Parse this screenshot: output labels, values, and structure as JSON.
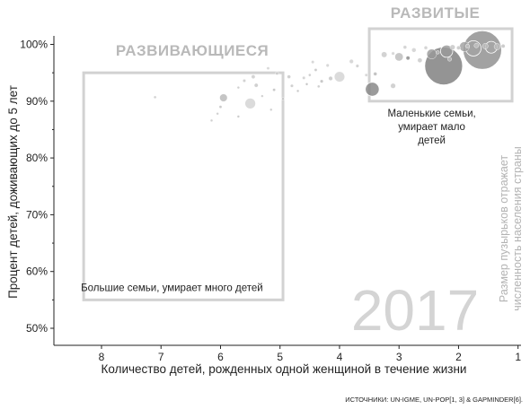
{
  "chart_data": {
    "type": "scatter",
    "xlabel": "Количество детей, рожденных одной женщиной в течение жизни",
    "ylabel": "Процент детей, доживающих до 5 лет",
    "xlim": [
      8.8,
      0.95
    ],
    "ylim": [
      47,
      101.5
    ],
    "x_ticks": [
      "8",
      "7",
      "6",
      "5",
      "4",
      "3",
      "2",
      "1"
    ],
    "x_tick_values": [
      8,
      7,
      6,
      5,
      4,
      3,
      2,
      1
    ],
    "y_ticks": [
      "50%",
      "60%",
      "70%",
      "80%",
      "90%",
      "100%"
    ],
    "y_tick_values": [
      50,
      60,
      70,
      80,
      90,
      100
    ],
    "grid": false,
    "year": "2017",
    "size_note_line1": "Размер пузырьков отражает",
    "size_note_line2": "численность населения страны",
    "source": "ИСТОЧНИКИ: UN-IGME, UN-POP[1, 3] & GAPMINDER[6].",
    "regions": [
      {
        "label": "РАЗВИВАЮЩИЕСЯ",
        "x_range": [
          8.3,
          4.95
        ],
        "y_range": [
          55,
          95
        ],
        "annotation": [
          "Большие семьи, умирает много детей"
        ]
      },
      {
        "label": "РАЗВИТЫЕ",
        "x_range": [
          3.5,
          1.1
        ],
        "y_range": [
          90,
          103
        ],
        "annotation": [
          "Маленькие семьи,",
          "умирает мало",
          "детей"
        ]
      }
    ],
    "points": [
      {
        "x": 1.6,
        "y": 99.0,
        "size": 1390,
        "color": "#8e8e8e"
      },
      {
        "x": 2.25,
        "y": 96.2,
        "size": 1340,
        "color": "#7d7d7d"
      },
      {
        "x": 1.75,
        "y": 99.3,
        "size": 220,
        "color": "#a3a3a3"
      },
      {
        "x": 1.45,
        "y": 99.5,
        "size": 130,
        "color": "#a6a6a6"
      },
      {
        "x": 1.9,
        "y": 99.6,
        "size": 90,
        "color": "#a0a0a0"
      },
      {
        "x": 2.2,
        "y": 98.8,
        "size": 140,
        "color": "#9a9a9a"
      },
      {
        "x": 2.45,
        "y": 98.3,
        "size": 90,
        "color": "#999999"
      },
      {
        "x": 1.35,
        "y": 99.6,
        "size": 36,
        "color": "#bcbcbc"
      },
      {
        "x": 1.55,
        "y": 99.7,
        "size": 30,
        "color": "#bdbdbd"
      },
      {
        "x": 1.25,
        "y": 99.7,
        "size": 14,
        "color": "#c2c2c2"
      },
      {
        "x": 1.7,
        "y": 99.8,
        "size": 20,
        "color": "#c2c2c2"
      },
      {
        "x": 1.85,
        "y": 99.7,
        "size": 16,
        "color": "#c2c2c2"
      },
      {
        "x": 2.0,
        "y": 99.4,
        "size": 14,
        "color": "#c5c5c5"
      },
      {
        "x": 2.1,
        "y": 99.5,
        "size": 24,
        "color": "#c6c6c6"
      },
      {
        "x": 2.55,
        "y": 99.4,
        "size": 12,
        "color": "#cccccc"
      },
      {
        "x": 2.75,
        "y": 99.0,
        "size": 18,
        "color": "#cfcfcf"
      },
      {
        "x": 2.9,
        "y": 99.5,
        "size": 12,
        "color": "#cccccc"
      },
      {
        "x": 3.0,
        "y": 97.8,
        "size": 64,
        "color": "#bcbcbc"
      },
      {
        "x": 2.65,
        "y": 97.2,
        "size": 20,
        "color": "#c8c8c8"
      },
      {
        "x": 2.85,
        "y": 97.6,
        "size": 14,
        "color": "#888888"
      },
      {
        "x": 3.1,
        "y": 98.4,
        "size": 10,
        "color": "#d0d0d0"
      },
      {
        "x": 3.25,
        "y": 98.2,
        "size": 30,
        "color": "#c9c9c9"
      },
      {
        "x": 2.35,
        "y": 98.6,
        "size": 12,
        "color": "#bdbdbd"
      },
      {
        "x": 2.15,
        "y": 97.4,
        "size": 16,
        "color": "#b9b9b9"
      },
      {
        "x": 3.45,
        "y": 92.1,
        "size": 180,
        "color": "#858585"
      },
      {
        "x": 3.1,
        "y": 92.7,
        "size": 24,
        "color": "#c8c8c8"
      },
      {
        "x": 3.4,
        "y": 94.8,
        "size": 12,
        "color": "#b6b6b6"
      },
      {
        "x": 3.55,
        "y": 94.6,
        "size": 9,
        "color": "#cfcfcf"
      },
      {
        "x": 3.7,
        "y": 96.2,
        "size": 10,
        "color": "#c8c8c8"
      },
      {
        "x": 3.8,
        "y": 97.0,
        "size": 16,
        "color": "#d0d0d0"
      },
      {
        "x": 4.0,
        "y": 94.3,
        "size": 100,
        "color": "#d3d3d3"
      },
      {
        "x": 4.15,
        "y": 94.0,
        "size": 16,
        "color": "#c4c4c4"
      },
      {
        "x": 4.2,
        "y": 96.3,
        "size": 10,
        "color": "#d0d0d0"
      },
      {
        "x": 4.3,
        "y": 93.5,
        "size": 10,
        "color": "#bcbcbc"
      },
      {
        "x": 4.35,
        "y": 92.6,
        "size": 7,
        "color": "#c4c4c4"
      },
      {
        "x": 4.4,
        "y": 95.5,
        "size": 8,
        "color": "#c0c0c0"
      },
      {
        "x": 4.45,
        "y": 96.9,
        "size": 9,
        "color": "#d0d0d0"
      },
      {
        "x": 4.5,
        "y": 94.6,
        "size": 7,
        "color": "#c4c4c4"
      },
      {
        "x": 4.55,
        "y": 93.0,
        "size": 6,
        "color": "#b8b8b8"
      },
      {
        "x": 4.6,
        "y": 94.1,
        "size": 9,
        "color": "#cccccc"
      },
      {
        "x": 4.7,
        "y": 91.8,
        "size": 6,
        "color": "#bdbdbd"
      },
      {
        "x": 4.8,
        "y": 92.7,
        "size": 9,
        "color": "#c6c6c6"
      },
      {
        "x": 4.85,
        "y": 94.3,
        "size": 12,
        "color": "#c6c6c6"
      },
      {
        "x": 4.95,
        "y": 90.4,
        "size": 7,
        "color": "#c0c0c0"
      },
      {
        "x": 5.05,
        "y": 94.9,
        "size": 10,
        "color": "#c9c9c9"
      },
      {
        "x": 5.1,
        "y": 92.0,
        "size": 8,
        "color": "#bdbdbd"
      },
      {
        "x": 5.15,
        "y": 88.5,
        "size": 5,
        "color": "#c6c6c6"
      },
      {
        "x": 5.2,
        "y": 95.8,
        "size": 8,
        "color": "#d0d0d0"
      },
      {
        "x": 5.5,
        "y": 89.6,
        "size": 110,
        "color": "#d3d3d3"
      },
      {
        "x": 5.4,
        "y": 92.8,
        "size": 14,
        "color": "#c6c6c6"
      },
      {
        "x": 5.45,
        "y": 94.3,
        "size": 14,
        "color": "#cbcbcb"
      },
      {
        "x": 5.6,
        "y": 93.6,
        "size": 9,
        "color": "#c8c8c8"
      },
      {
        "x": 5.7,
        "y": 92.4,
        "size": 6,
        "color": "#c4c4c4"
      },
      {
        "x": 5.3,
        "y": 90.9,
        "size": 5,
        "color": "#c6c6c6"
      },
      {
        "x": 5.95,
        "y": 90.6,
        "size": 55,
        "color": "#b8b8b8"
      },
      {
        "x": 6.0,
        "y": 89.0,
        "size": 8,
        "color": "#c0c0c0"
      },
      {
        "x": 6.05,
        "y": 87.8,
        "size": 6,
        "color": "#c6c6c6"
      },
      {
        "x": 5.7,
        "y": 87.3,
        "size": 6,
        "color": "#c0c0c0"
      },
      {
        "x": 6.15,
        "y": 86.6,
        "size": 5,
        "color": "#c6c6c6"
      },
      {
        "x": 7.1,
        "y": 90.7,
        "size": 7,
        "color": "#c8c8c8"
      }
    ]
  }
}
